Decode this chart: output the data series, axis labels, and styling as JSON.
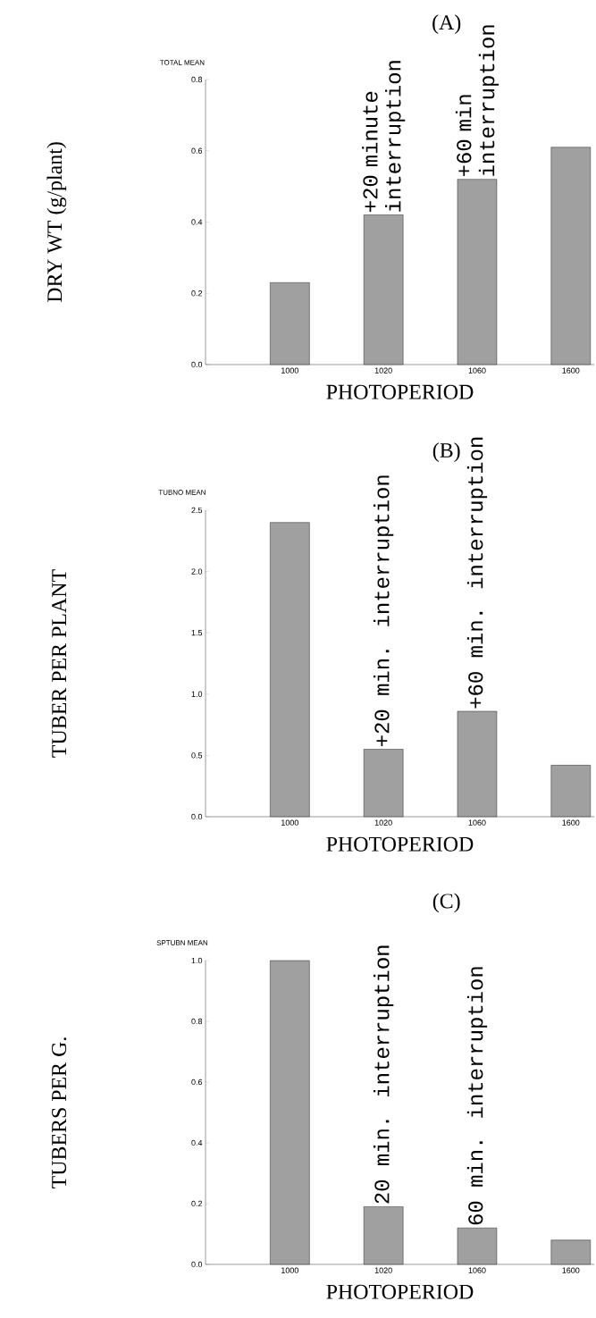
{
  "chart_data": [
    {
      "type": "bar",
      "title": "(A)",
      "xlabel": "PHOTOPERIOD",
      "ylabel": "DRY WT (g/plant)",
      "categories": [
        "1000",
        "1020",
        "1060",
        "1600"
      ],
      "values": [
        0.23,
        0.42,
        0.52,
        0.61
      ],
      "color": "#a0a0a0",
      "ylim": [
        0,
        0.8
      ],
      "yticks": [
        {
          "value": 0,
          "label": "0.0"
        },
        {
          "value": 0.2,
          "label": "0.2"
        },
        {
          "value": 0.4,
          "label": "0.4"
        },
        {
          "value": 0.6,
          "label": "0.6"
        },
        {
          "value": 0.8,
          "label": "0.8"
        }
      ],
      "annotations": [
        "TOTAL MEAN",
        {
          "text": "+20 minute interruption",
          "x": "1020",
          "y": 0.42
        },
        {
          "text": "+60 min interruption",
          "x": "1060",
          "y": 0.52
        }
      ]
    },
    {
      "type": "bar",
      "title": "(B)",
      "xlabel": "PHOTOPERIOD",
      "ylabel": "TUBER PER PLANT",
      "categories": [
        "1000",
        "1020",
        "1060",
        "1600"
      ],
      "values": [
        2.4,
        0.55,
        0.86,
        0.42
      ],
      "color": "#a0a0a0",
      "ylim": [
        0,
        2.5
      ],
      "yticks": [
        {
          "value": 0,
          "label": "0.0"
        },
        {
          "value": 0.5,
          "label": "0.5"
        },
        {
          "value": 1,
          "label": "1.0"
        },
        {
          "value": 1.5,
          "label": "1.5"
        },
        {
          "value": 2,
          "label": "2.0"
        },
        {
          "value": 2.5,
          "label": "2.5"
        }
      ],
      "annotations": [
        "TUBNO MEAN",
        {
          "text": "+20 min. interruption",
          "x": "1020",
          "y": 0.55
        },
        {
          "text": "+60 min. interruption",
          "x": "1060",
          "y": 0.86
        }
      ]
    },
    {
      "type": "bar",
      "title": "(C)",
      "xlabel": "PHOTOPERIOD",
      "ylabel": "TUBERS PER G.",
      "categories": [
        "1000",
        "1020",
        "1060",
        "1600"
      ],
      "values": [
        1.0,
        0.19,
        0.12,
        0.08
      ],
      "color": "#a0a0a0",
      "ylim": [
        0,
        1.0
      ],
      "yticks": [
        {
          "value": 0,
          "label": "0.0"
        },
        {
          "value": 0.2,
          "label": "0.2"
        },
        {
          "value": 0.4,
          "label": "0.4"
        },
        {
          "value": 0.6,
          "label": "0.6"
        },
        {
          "value": 0.8,
          "label": "0.8"
        },
        {
          "value": 1.0,
          "label": "1.0"
        }
      ],
      "annotations": [
        "SPTUBN MEAN",
        {
          "text": "20 min. interruption",
          "x": "1020",
          "y": 0.19
        },
        {
          "text": "60 min. interruption",
          "x": "1060",
          "y": 0.12
        }
      ]
    }
  ]
}
